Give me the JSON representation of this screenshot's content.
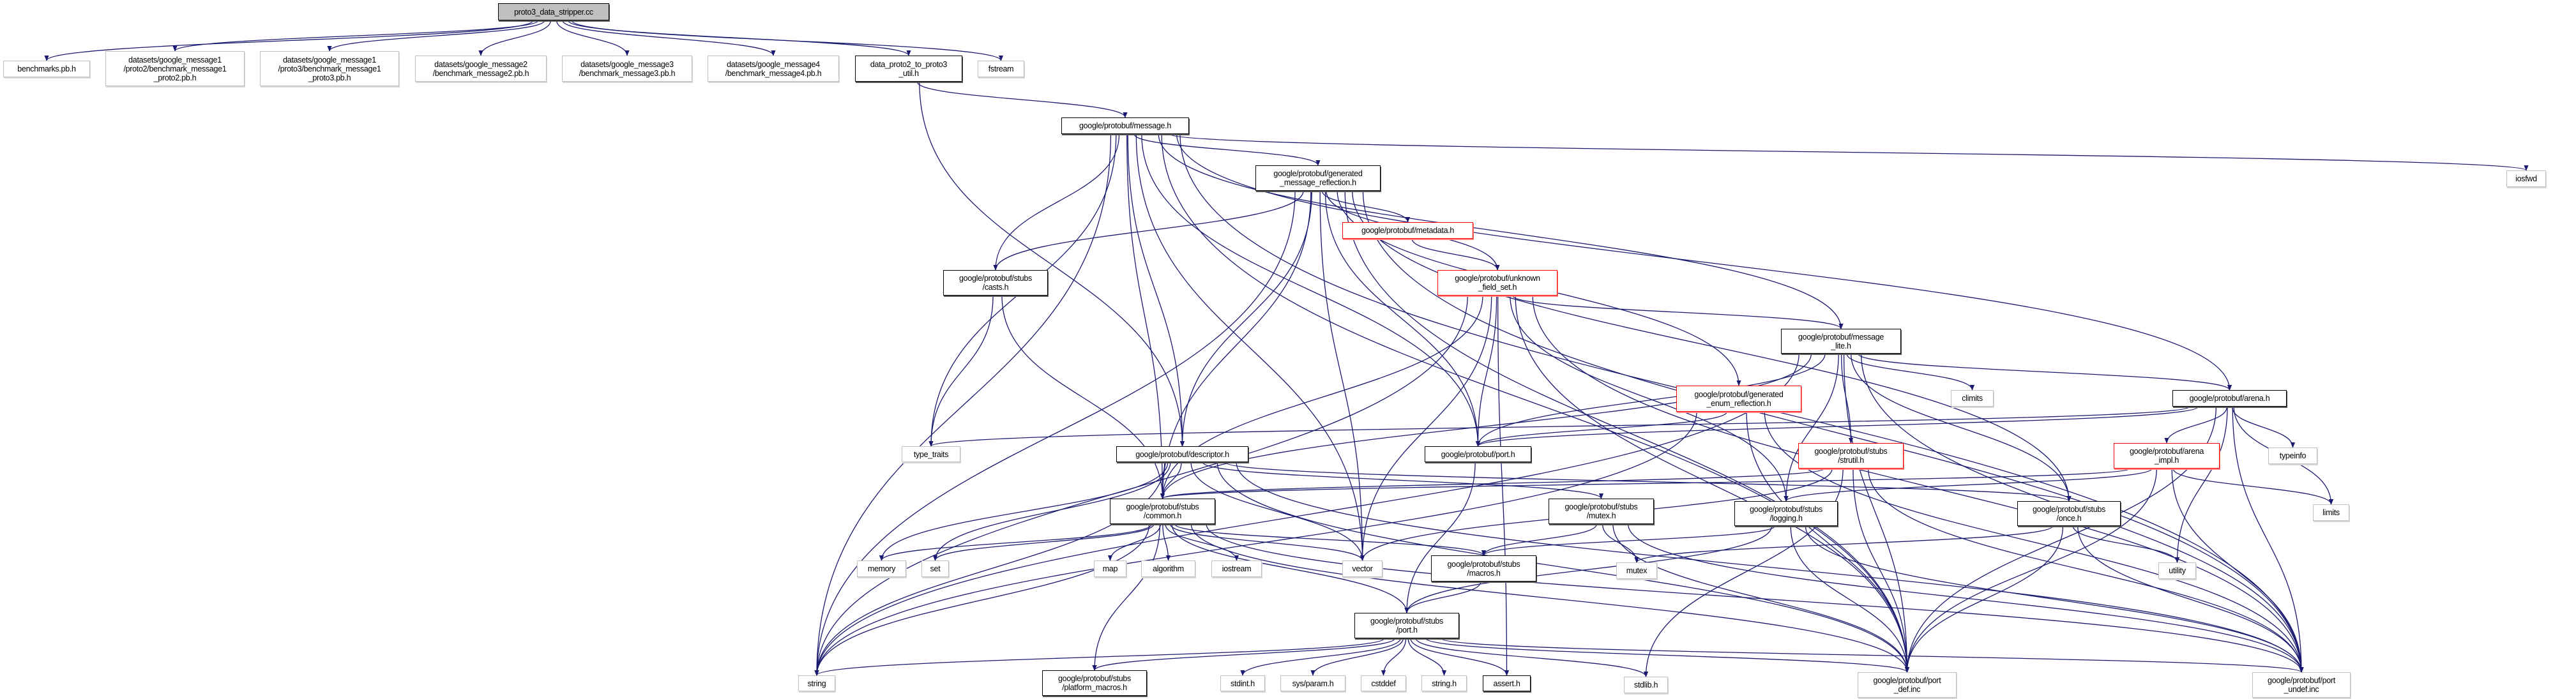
{
  "edge_color": "#191970",
  "nodes": [
    {
      "id": "root",
      "label": "proto3_data_stripper.cc",
      "kind": "root"
    },
    {
      "id": "bench",
      "label": "benchmarks.pb.h",
      "kind": "sys"
    },
    {
      "id": "ds1p2",
      "label": "datasets/google_message1\n/proto2/benchmark_message1\n_proto2.pb.h",
      "kind": "sys"
    },
    {
      "id": "ds1p3",
      "label": "datasets/google_message1\n/proto3/benchmark_message1\n_proto3.pb.h",
      "kind": "sys"
    },
    {
      "id": "ds2",
      "label": "datasets/google_message2\n/benchmark_message2.pb.h",
      "kind": "sys"
    },
    {
      "id": "ds3",
      "label": "datasets/google_message3\n/benchmark_message3.pb.h",
      "kind": "sys"
    },
    {
      "id": "ds4",
      "label": "datasets/google_message4\n/benchmark_message4.pb.h",
      "kind": "sys"
    },
    {
      "id": "dp2p3",
      "label": "data_proto2_to_proto3\n_util.h",
      "kind": "doc"
    },
    {
      "id": "fstream",
      "label": "fstream",
      "kind": "sys"
    },
    {
      "id": "message",
      "label": "google/protobuf/message.h",
      "kind": "doc"
    },
    {
      "id": "iosfwd",
      "label": "iosfwd",
      "kind": "sys"
    },
    {
      "id": "genref",
      "label": "google/protobuf/generated\n_message_reflection.h",
      "kind": "doc"
    },
    {
      "id": "metadata",
      "label": "google/protobuf/metadata.h",
      "kind": "red"
    },
    {
      "id": "casts",
      "label": "google/protobuf/stubs\n/casts.h",
      "kind": "doc"
    },
    {
      "id": "unknown",
      "label": "google/protobuf/unknown\n_field_set.h",
      "kind": "red"
    },
    {
      "id": "msglite",
      "label": "google/protobuf/message\n_lite.h",
      "kind": "doc"
    },
    {
      "id": "genenum",
      "label": "google/protobuf/generated\n_enum_reflection.h",
      "kind": "red"
    },
    {
      "id": "climits",
      "label": "climits",
      "kind": "sys"
    },
    {
      "id": "arena",
      "label": "google/protobuf/arena.h",
      "kind": "doc"
    },
    {
      "id": "type_traits",
      "label": "type_traits",
      "kind": "sys"
    },
    {
      "id": "descriptor",
      "label": "google/protobuf/descriptor.h",
      "kind": "doc"
    },
    {
      "id": "port",
      "label": "google/protobuf/port.h",
      "kind": "doc"
    },
    {
      "id": "strutil",
      "label": "google/protobuf/stubs\n/strutil.h",
      "kind": "red"
    },
    {
      "id": "arenaimpl",
      "label": "google/protobuf/arena\n_impl.h",
      "kind": "red"
    },
    {
      "id": "typeinfo",
      "label": "typeinfo",
      "kind": "sys"
    },
    {
      "id": "common",
      "label": "google/protobuf/stubs\n/common.h",
      "kind": "doc"
    },
    {
      "id": "smutex",
      "label": "google/protobuf/stubs\n/mutex.h",
      "kind": "doc"
    },
    {
      "id": "logging",
      "label": "google/protobuf/stubs\n/logging.h",
      "kind": "doc"
    },
    {
      "id": "once",
      "label": "google/protobuf/stubs\n/once.h",
      "kind": "doc"
    },
    {
      "id": "limits",
      "label": "limits",
      "kind": "sys"
    },
    {
      "id": "memory",
      "label": "memory",
      "kind": "sys"
    },
    {
      "id": "set",
      "label": "set",
      "kind": "sys"
    },
    {
      "id": "map",
      "label": "map",
      "kind": "sys"
    },
    {
      "id": "algorithm",
      "label": "algorithm",
      "kind": "sys"
    },
    {
      "id": "iostream",
      "label": "iostream",
      "kind": "sys"
    },
    {
      "id": "vector",
      "label": "vector",
      "kind": "sys"
    },
    {
      "id": "macros",
      "label": "google/protobuf/stubs\n/macros.h",
      "kind": "doc"
    },
    {
      "id": "mutex",
      "label": "mutex",
      "kind": "sys"
    },
    {
      "id": "utility",
      "label": "utility",
      "kind": "sys"
    },
    {
      "id": "sport",
      "label": "google/protobuf/stubs\n/port.h",
      "kind": "doc"
    },
    {
      "id": "string",
      "label": "string",
      "kind": "sys"
    },
    {
      "id": "platform",
      "label": "google/protobuf/stubs\n/platform_macros.h",
      "kind": "doc"
    },
    {
      "id": "stdint",
      "label": "stdint.h",
      "kind": "sys"
    },
    {
      "id": "sysparam",
      "label": "sys/param.h",
      "kind": "sys"
    },
    {
      "id": "cstddef",
      "label": "cstddef",
      "kind": "sys"
    },
    {
      "id": "stringh",
      "label": "string.h",
      "kind": "sys"
    },
    {
      "id": "assert",
      "label": "assert.h",
      "kind": "doc"
    },
    {
      "id": "stdlib",
      "label": "stdlib.h",
      "kind": "sys"
    },
    {
      "id": "portdef",
      "label": "google/protobuf/port\n_def.inc",
      "kind": "sys"
    },
    {
      "id": "portundef",
      "label": "google/protobuf/port\n_undef.inc",
      "kind": "sys"
    }
  ],
  "edges": [
    [
      "root",
      "bench"
    ],
    [
      "root",
      "ds1p2"
    ],
    [
      "root",
      "ds1p3"
    ],
    [
      "root",
      "ds2"
    ],
    [
      "root",
      "ds3"
    ],
    [
      "root",
      "ds4"
    ],
    [
      "root",
      "dp2p3"
    ],
    [
      "root",
      "fstream"
    ],
    [
      "dp2p3",
      "message"
    ],
    [
      "dp2p3",
      "descriptor"
    ],
    [
      "message",
      "genref"
    ],
    [
      "message",
      "casts"
    ],
    [
      "message",
      "descriptor"
    ],
    [
      "message",
      "common"
    ],
    [
      "message",
      "port"
    ],
    [
      "message",
      "msglite"
    ],
    [
      "message",
      "arena"
    ],
    [
      "message",
      "type_traits"
    ],
    [
      "message",
      "string"
    ],
    [
      "message",
      "vector"
    ],
    [
      "message",
      "iosfwd"
    ],
    [
      "message",
      "portdef"
    ],
    [
      "message",
      "portundef"
    ],
    [
      "genref",
      "metadata"
    ],
    [
      "genref",
      "unknown"
    ],
    [
      "genref",
      "casts"
    ],
    [
      "genref",
      "common"
    ],
    [
      "genref",
      "descriptor"
    ],
    [
      "genref",
      "string"
    ],
    [
      "genref",
      "vector"
    ],
    [
      "genref",
      "port"
    ],
    [
      "genref",
      "genenum"
    ],
    [
      "genref",
      "once"
    ],
    [
      "genref",
      "portdef"
    ],
    [
      "genref",
      "portundef"
    ],
    [
      "metadata",
      "unknown"
    ],
    [
      "unknown",
      "msglite"
    ],
    [
      "unknown",
      "common"
    ],
    [
      "unknown",
      "logging"
    ],
    [
      "unknown",
      "port"
    ],
    [
      "unknown",
      "vector"
    ],
    [
      "unknown",
      "string"
    ],
    [
      "unknown",
      "assert"
    ],
    [
      "unknown",
      "portdef"
    ],
    [
      "unknown",
      "portundef"
    ],
    [
      "casts",
      "type_traits"
    ],
    [
      "casts",
      "common"
    ],
    [
      "msglite",
      "common"
    ],
    [
      "msglite",
      "logging"
    ],
    [
      "msglite",
      "strutil"
    ],
    [
      "msglite",
      "once"
    ],
    [
      "msglite",
      "climits"
    ],
    [
      "msglite",
      "arena"
    ],
    [
      "msglite",
      "port"
    ],
    [
      "msglite",
      "string"
    ],
    [
      "msglite",
      "portdef"
    ],
    [
      "msglite",
      "portundef"
    ],
    [
      "genenum",
      "port"
    ],
    [
      "genenum",
      "string"
    ],
    [
      "genenum",
      "portdef"
    ],
    [
      "genenum",
      "portundef"
    ],
    [
      "arena",
      "arenaimpl"
    ],
    [
      "arena",
      "port"
    ],
    [
      "arena",
      "type_traits"
    ],
    [
      "arena",
      "typeinfo"
    ],
    [
      "arena",
      "limits"
    ],
    [
      "arena",
      "utility"
    ],
    [
      "arena",
      "portdef"
    ],
    [
      "arena",
      "portundef"
    ],
    [
      "arenaimpl",
      "logging"
    ],
    [
      "arenaimpl",
      "common"
    ],
    [
      "arenaimpl",
      "limits"
    ],
    [
      "arenaimpl",
      "portdef"
    ],
    [
      "arenaimpl",
      "portundef"
    ],
    [
      "strutil",
      "common"
    ],
    [
      "strutil",
      "vector"
    ],
    [
      "strutil",
      "stdlib"
    ],
    [
      "strutil",
      "portdef"
    ],
    [
      "strutil",
      "portundef"
    ],
    [
      "descriptor",
      "common"
    ],
    [
      "descriptor",
      "smutex"
    ],
    [
      "descriptor",
      "once"
    ],
    [
      "descriptor",
      "memory"
    ],
    [
      "descriptor",
      "set"
    ],
    [
      "descriptor",
      "string"
    ],
    [
      "descriptor",
      "vector"
    ],
    [
      "descriptor",
      "portdef"
    ],
    [
      "descriptor",
      "portundef"
    ],
    [
      "common",
      "memory"
    ],
    [
      "common",
      "set"
    ],
    [
      "common",
      "map"
    ],
    [
      "common",
      "algorithm"
    ],
    [
      "common",
      "iostream"
    ],
    [
      "common",
      "vector"
    ],
    [
      "common",
      "macros"
    ],
    [
      "common",
      "sport"
    ],
    [
      "common",
      "string"
    ],
    [
      "common",
      "platform"
    ],
    [
      "common",
      "portdef"
    ],
    [
      "common",
      "portundef"
    ],
    [
      "smutex",
      "macros"
    ],
    [
      "smutex",
      "mutex"
    ],
    [
      "smutex",
      "portdef"
    ],
    [
      "smutex",
      "portundef"
    ],
    [
      "logging",
      "macros"
    ],
    [
      "logging",
      "sport"
    ],
    [
      "logging",
      "portdef"
    ],
    [
      "logging",
      "portundef"
    ],
    [
      "once",
      "mutex"
    ],
    [
      "once",
      "utility"
    ],
    [
      "once",
      "portdef"
    ],
    [
      "once",
      "portundef"
    ],
    [
      "macros",
      "sport"
    ],
    [
      "port",
      "sport"
    ],
    [
      "sport",
      "string"
    ],
    [
      "sport",
      "platform"
    ],
    [
      "sport",
      "stdint"
    ],
    [
      "sport",
      "sysparam"
    ],
    [
      "sport",
      "cstddef"
    ],
    [
      "sport",
      "stringh"
    ],
    [
      "sport",
      "assert"
    ],
    [
      "sport",
      "stdlib"
    ],
    [
      "sport",
      "portdef"
    ],
    [
      "sport",
      "portundef"
    ]
  ]
}
